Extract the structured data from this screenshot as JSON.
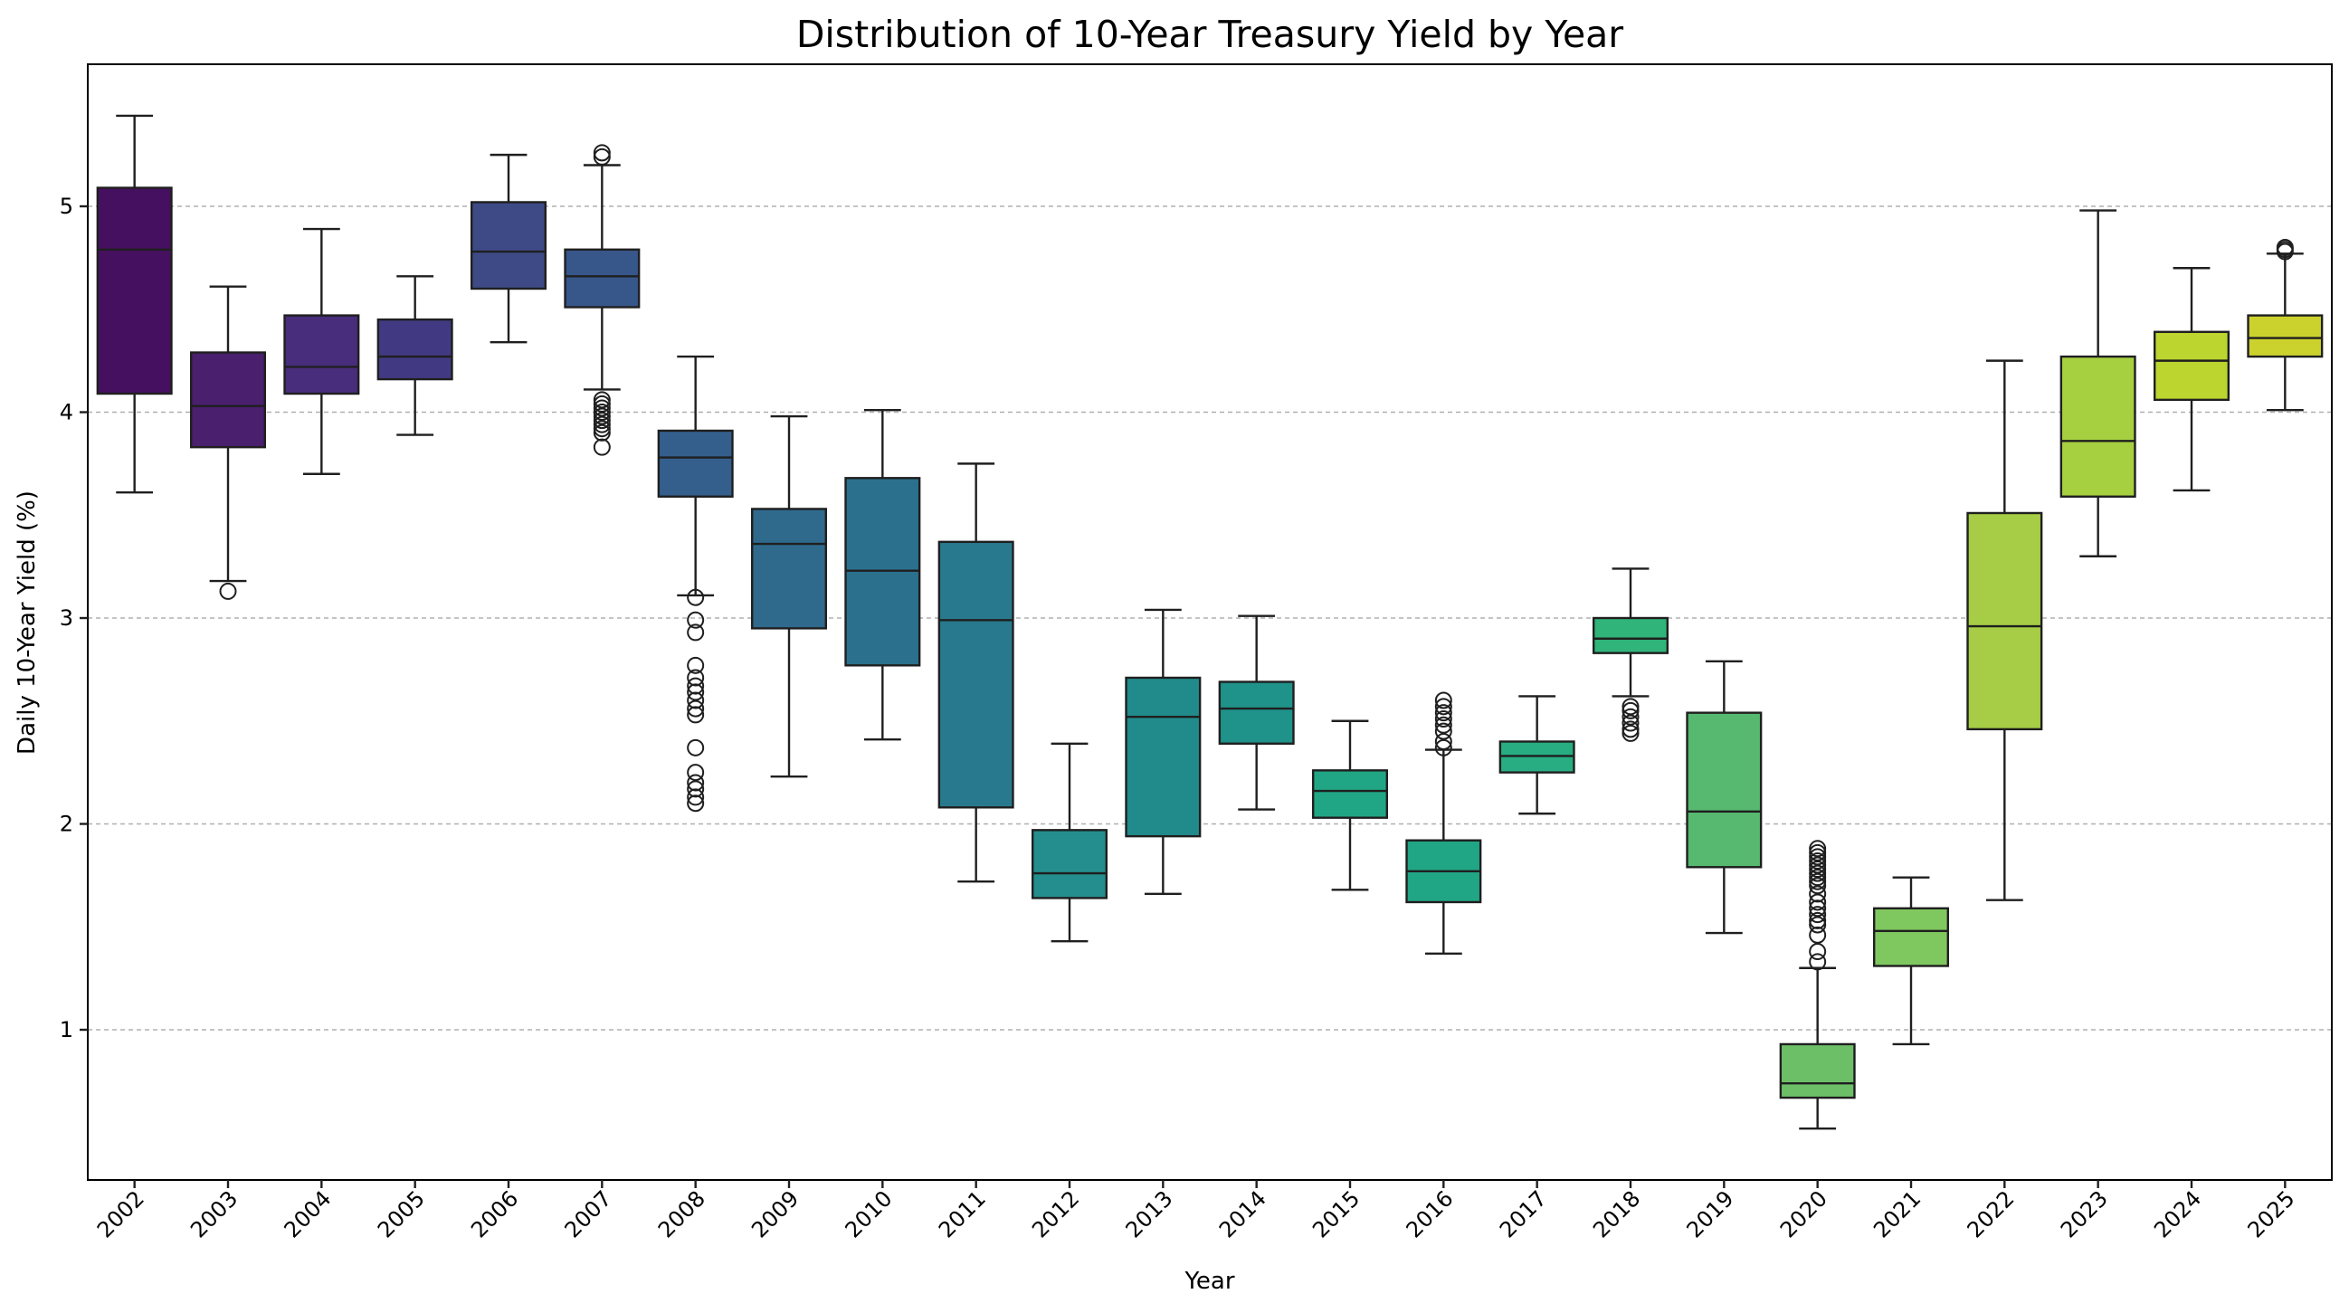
{
  "chart_data": {
    "type": "box",
    "title": "Distribution of 10-Year Treasury Yield by Year",
    "xlabel": "Year",
    "ylabel": "Daily 10-Year Yield (%)",
    "ylim": [
      0.25,
      5.7
    ],
    "yticks": [
      "1",
      "2",
      "3",
      "4",
      "5"
    ],
    "grid": "y-dashed",
    "palette": "viridis",
    "categories": [
      "2002",
      "2003",
      "2004",
      "2005",
      "2006",
      "2007",
      "2008",
      "2009",
      "2010",
      "2011",
      "2012",
      "2013",
      "2014",
      "2015",
      "2016",
      "2017",
      "2018",
      "2019",
      "2020",
      "2021",
      "2022",
      "2023",
      "2024",
      "2025"
    ],
    "colors": [
      "#45105f",
      "#491f6e",
      "#472d7b",
      "#413a82",
      "#3d4a86",
      "#37568a",
      "#345f8c",
      "#2f6a8d",
      "#2b718e",
      "#28798e",
      "#238e8d",
      "#218b8b",
      "#1f928a",
      "#21a685",
      "#21a685",
      "#27ad81",
      "#30b47a",
      "#57b86f",
      "#6cbf67",
      "#7fc75f",
      "#a6cd45",
      "#a6d040",
      "#bcd52f",
      "#ccd22d"
    ],
    "boxes": [
      {
        "year": "2002",
        "whislo": 3.61,
        "q1": 4.09,
        "med": 4.79,
        "q3": 5.09,
        "whishi": 5.44,
        "fliers": []
      },
      {
        "year": "2003",
        "whislo": 3.18,
        "q1": 3.83,
        "med": 4.03,
        "q3": 4.29,
        "whishi": 4.61,
        "fliers": [
          3.13
        ]
      },
      {
        "year": "2004",
        "whislo": 3.7,
        "q1": 4.09,
        "med": 4.22,
        "q3": 4.47,
        "whishi": 4.89,
        "fliers": []
      },
      {
        "year": "2005",
        "whislo": 3.89,
        "q1": 4.16,
        "med": 4.27,
        "q3": 4.45,
        "whishi": 4.66,
        "fliers": []
      },
      {
        "year": "2006",
        "whislo": 4.34,
        "q1": 4.6,
        "med": 4.78,
        "q3": 5.02,
        "whishi": 5.25,
        "fliers": []
      },
      {
        "year": "2007",
        "whislo": 4.11,
        "q1": 4.51,
        "med": 4.66,
        "q3": 4.79,
        "whishi": 5.2,
        "fliers": [
          5.26,
          5.24,
          4.06,
          4.04,
          4.02,
          4.0,
          3.98,
          3.96,
          3.94,
          3.92,
          3.9,
          3.83
        ]
      },
      {
        "year": "2008",
        "whislo": 3.11,
        "q1": 3.59,
        "med": 3.78,
        "q3": 3.91,
        "whishi": 4.27,
        "fliers": [
          3.1,
          2.99,
          2.93,
          2.77,
          2.71,
          2.67,
          2.64,
          2.6,
          2.56,
          2.53,
          2.37,
          2.25,
          2.2,
          2.17,
          2.13,
          2.1
        ]
      },
      {
        "year": "2009",
        "whislo": 2.23,
        "q1": 2.95,
        "med": 3.36,
        "q3": 3.53,
        "whishi": 3.98,
        "fliers": []
      },
      {
        "year": "2010",
        "whislo": 2.41,
        "q1": 2.77,
        "med": 3.23,
        "q3": 3.68,
        "whishi": 4.01,
        "fliers": []
      },
      {
        "year": "2011",
        "whislo": 1.72,
        "q1": 2.08,
        "med": 2.99,
        "q3": 3.37,
        "whishi": 3.75,
        "fliers": []
      },
      {
        "year": "2012",
        "whislo": 1.43,
        "q1": 1.64,
        "med": 1.76,
        "q3": 1.97,
        "whishi": 2.39,
        "fliers": []
      },
      {
        "year": "2013",
        "whislo": 1.66,
        "q1": 1.94,
        "med": 2.52,
        "q3": 2.71,
        "whishi": 3.04,
        "fliers": []
      },
      {
        "year": "2014",
        "whislo": 2.07,
        "q1": 2.39,
        "med": 2.56,
        "q3": 2.69,
        "whishi": 3.01,
        "fliers": []
      },
      {
        "year": "2015",
        "whislo": 1.68,
        "q1": 2.03,
        "med": 2.16,
        "q3": 2.26,
        "whishi": 2.5,
        "fliers": []
      },
      {
        "year": "2016",
        "whislo": 1.37,
        "q1": 1.62,
        "med": 1.77,
        "q3": 1.92,
        "whishi": 2.36,
        "fliers": [
          2.6,
          2.57,
          2.54,
          2.51,
          2.48,
          2.45,
          2.4,
          2.37
        ]
      },
      {
        "year": "2017",
        "whislo": 2.05,
        "q1": 2.25,
        "med": 2.33,
        "q3": 2.4,
        "whishi": 2.62,
        "fliers": []
      },
      {
        "year": "2018",
        "whislo": 2.62,
        "q1": 2.83,
        "med": 2.9,
        "q3": 3.0,
        "whishi": 3.24,
        "fliers": [
          2.57,
          2.55,
          2.52,
          2.49,
          2.46,
          2.44
        ]
      },
      {
        "year": "2019",
        "whislo": 1.47,
        "q1": 1.79,
        "med": 2.06,
        "q3": 2.54,
        "whishi": 2.79,
        "fliers": []
      },
      {
        "year": "2020",
        "whislo": 0.52,
        "q1": 0.67,
        "med": 0.74,
        "q3": 0.93,
        "whishi": 1.3,
        "fliers": [
          1.88,
          1.86,
          1.84,
          1.82,
          1.8,
          1.78,
          1.76,
          1.74,
          1.72,
          1.7,
          1.66,
          1.62,
          1.59,
          1.56,
          1.53,
          1.51,
          1.46,
          1.38,
          1.33
        ]
      },
      {
        "year": "2021",
        "whislo": 0.93,
        "q1": 1.31,
        "med": 1.48,
        "q3": 1.59,
        "whishi": 1.74,
        "fliers": []
      },
      {
        "year": "2022",
        "whislo": 1.63,
        "q1": 2.46,
        "med": 2.96,
        "q3": 3.51,
        "whishi": 4.25,
        "fliers": []
      },
      {
        "year": "2023",
        "whislo": 3.3,
        "q1": 3.59,
        "med": 3.86,
        "q3": 4.27,
        "whishi": 4.98,
        "fliers": []
      },
      {
        "year": "2024",
        "whislo": 3.62,
        "q1": 4.06,
        "med": 4.25,
        "q3": 4.39,
        "whishi": 4.7,
        "fliers": []
      },
      {
        "year": "2025",
        "whislo": 4.01,
        "q1": 4.27,
        "med": 4.36,
        "q3": 4.47,
        "whishi": 4.77,
        "fliers": [
          4.8,
          4.79,
          4.78
        ]
      }
    ]
  }
}
